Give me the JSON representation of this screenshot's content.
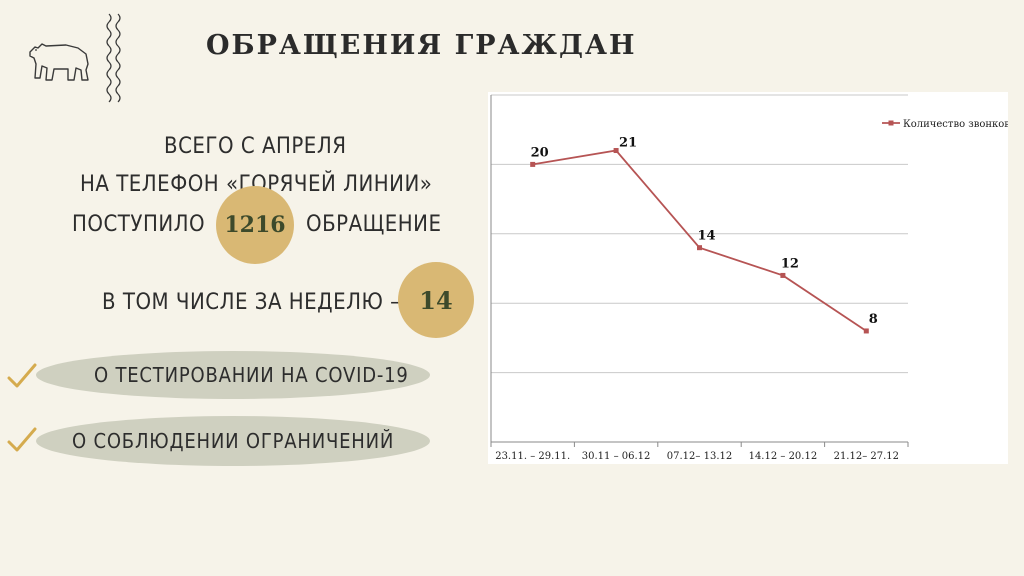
{
  "header": {
    "title": "ОБРАЩЕНИЯ ГРАЖДАН"
  },
  "summary": {
    "line1": "ВСЕГО С АПРЕЛЯ",
    "line2": "НА ТЕЛЕФОН «ГОРЯЧЕЙ ЛИНИИ»",
    "line3_pre": "ПОСТУПИЛО",
    "total": "1216",
    "line3_post": "ОБРАЩЕНИЕ",
    "week_label": "В ТОМ ЧИСЛЕ ЗА НЕДЕЛЮ –",
    "week_value": "14"
  },
  "topics": [
    {
      "label": "О ТЕСТИРОВАНИИ НА COVID-19"
    },
    {
      "label": "О СОБЛЮДЕНИИ ОГРАНИЧЕНИЙ"
    }
  ],
  "icons": {
    "logo": "bear-icon",
    "decor": "wavy-lines-icon",
    "check": "check-icon"
  },
  "colors": {
    "background": "#f6f3e9",
    "accent_circle": "#d9b874",
    "pill": "#cfd0c0",
    "check": "#d5ab4e",
    "series_line": "#b65454"
  },
  "chart_data": {
    "type": "line",
    "categories": [
      "23.11. – 29.11.",
      "30.11 – 06.12",
      "07.12– 13.12",
      "14.12 – 20.12",
      "21.12– 27.12"
    ],
    "series": [
      {
        "name": "Количество звонков",
        "values": [
          20,
          21,
          14,
          12,
          8
        ]
      }
    ],
    "data_labels": [
      "20",
      "21",
      "14",
      "12",
      "8"
    ],
    "ylim": [
      0,
      25
    ],
    "grid": true,
    "legend_position": "top-right",
    "title": "",
    "xlabel": "",
    "ylabel": ""
  }
}
